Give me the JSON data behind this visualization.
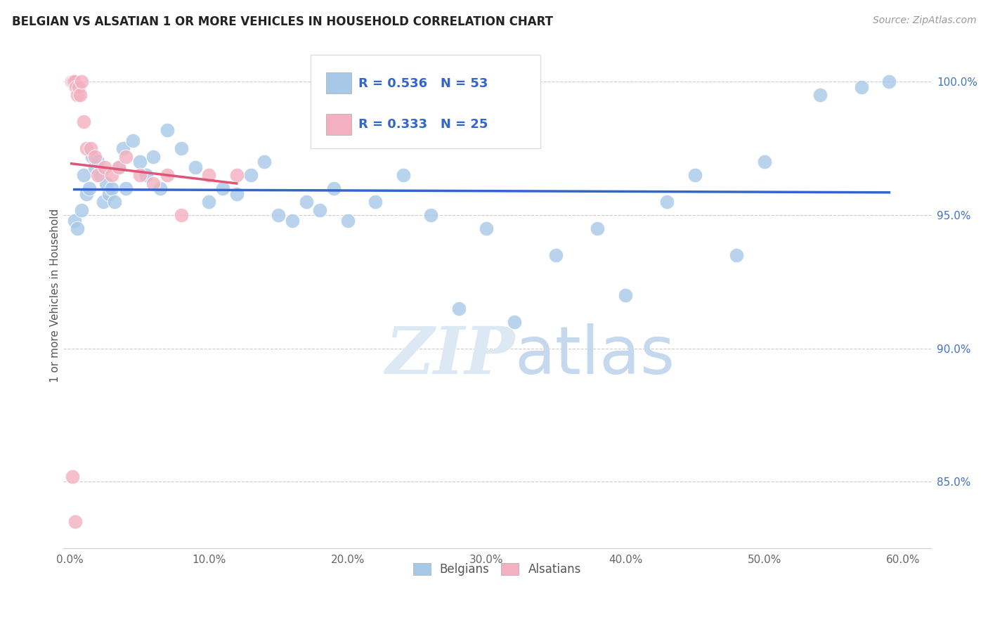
{
  "title": "BELGIAN VS ALSATIAN 1 OR MORE VEHICLES IN HOUSEHOLD CORRELATION CHART",
  "source": "Source: ZipAtlas.com",
  "xlabel_ticks": [
    "0.0%",
    "10.0%",
    "20.0%",
    "30.0%",
    "40.0%",
    "50.0%",
    "60.0%"
  ],
  "xlabel_vals": [
    0,
    10,
    20,
    30,
    40,
    50,
    60
  ],
  "ylabel": "1 or more Vehicles in Household",
  "ylim": [
    82.5,
    101.5
  ],
  "xlim": [
    -0.5,
    62
  ],
  "blue_R": 0.536,
  "blue_N": 53,
  "pink_R": 0.333,
  "pink_N": 25,
  "blue_color": "#a8c8e8",
  "pink_color": "#f4b0c0",
  "blue_line_color": "#3366cc",
  "pink_line_color": "#e05575",
  "watermark_zip": "ZIP",
  "watermark_atlas": "atlas",
  "legend_blue_label": "Belgians",
  "legend_pink_label": "Alsatians",
  "ytick_vals": [
    85,
    90,
    95,
    100
  ],
  "ytick_labels": [
    "85.0%",
    "90.0%",
    "95.0%",
    "100.0%"
  ],
  "blue_scatter_x": [
    0.3,
    0.5,
    0.8,
    1.0,
    1.2,
    1.4,
    1.6,
    1.8,
    2.0,
    2.2,
    2.4,
    2.6,
    2.8,
    3.0,
    3.2,
    3.5,
    3.8,
    4.0,
    4.5,
    5.0,
    5.5,
    6.0,
    6.5,
    7.0,
    8.0,
    9.0,
    10.0,
    11.0,
    12.0,
    13.0,
    14.0,
    15.0,
    16.0,
    17.0,
    18.0,
    19.0,
    20.0,
    22.0,
    24.0,
    26.0,
    28.0,
    30.0,
    32.0,
    35.0,
    38.0,
    40.0,
    43.0,
    45.0,
    48.0,
    50.0,
    54.0,
    57.0,
    59.0
  ],
  "blue_scatter_y": [
    94.8,
    94.5,
    95.2,
    96.5,
    95.8,
    96.0,
    97.2,
    96.8,
    97.0,
    96.5,
    95.5,
    96.2,
    95.8,
    96.0,
    95.5,
    96.8,
    97.5,
    96.0,
    97.8,
    97.0,
    96.5,
    97.2,
    96.0,
    98.2,
    97.5,
    96.8,
    95.5,
    96.0,
    95.8,
    96.5,
    97.0,
    95.0,
    94.8,
    95.5,
    95.2,
    96.0,
    94.8,
    95.5,
    96.5,
    95.0,
    91.5,
    94.5,
    91.0,
    93.5,
    94.5,
    92.0,
    95.5,
    96.5,
    93.5,
    97.0,
    99.5,
    99.8,
    100.0
  ],
  "pink_scatter_x": [
    0.1,
    0.2,
    0.3,
    0.4,
    0.5,
    0.6,
    0.7,
    0.8,
    1.0,
    1.2,
    1.5,
    1.8,
    2.0,
    2.5,
    3.0,
    3.5,
    4.0,
    5.0,
    6.0,
    7.0,
    8.0,
    10.0,
    12.0,
    0.15,
    0.35
  ],
  "pink_scatter_y": [
    100.0,
    100.0,
    100.0,
    99.8,
    99.5,
    99.8,
    99.5,
    100.0,
    98.5,
    97.5,
    97.5,
    97.2,
    96.5,
    96.8,
    96.5,
    96.8,
    97.2,
    96.5,
    96.2,
    96.5,
    95.0,
    96.5,
    96.5,
    85.2,
    83.5
  ]
}
